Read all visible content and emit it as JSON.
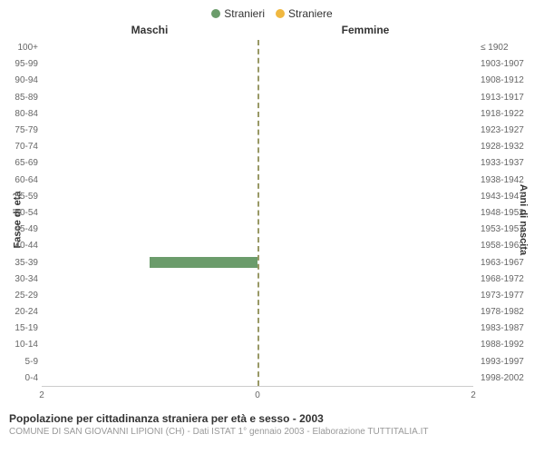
{
  "legend": {
    "male": {
      "label": "Stranieri",
      "color": "#6b9c6b"
    },
    "female": {
      "label": "Straniere",
      "color": "#f0b840"
    }
  },
  "columns": {
    "left": "Maschi",
    "right": "Femmine"
  },
  "axes": {
    "left_label": "Fasce di età",
    "right_label": "Anni di nascita",
    "xmax": 2,
    "x_ticks": [
      2,
      0,
      2
    ]
  },
  "age_groups": [
    {
      "age": "100+",
      "birth": "≤ 1902",
      "m": 0,
      "f": 0
    },
    {
      "age": "95-99",
      "birth": "1903-1907",
      "m": 0,
      "f": 0
    },
    {
      "age": "90-94",
      "birth": "1908-1912",
      "m": 0,
      "f": 0
    },
    {
      "age": "85-89",
      "birth": "1913-1917",
      "m": 0,
      "f": 0
    },
    {
      "age": "80-84",
      "birth": "1918-1922",
      "m": 0,
      "f": 0
    },
    {
      "age": "75-79",
      "birth": "1923-1927",
      "m": 0,
      "f": 0
    },
    {
      "age": "70-74",
      "birth": "1928-1932",
      "m": 0,
      "f": 0
    },
    {
      "age": "65-69",
      "birth": "1933-1937",
      "m": 0,
      "f": 0
    },
    {
      "age": "60-64",
      "birth": "1938-1942",
      "m": 0,
      "f": 0
    },
    {
      "age": "55-59",
      "birth": "1943-1947",
      "m": 0,
      "f": 0
    },
    {
      "age": "50-54",
      "birth": "1948-1952",
      "m": 0,
      "f": 0
    },
    {
      "age": "45-49",
      "birth": "1953-1957",
      "m": 0,
      "f": 0
    },
    {
      "age": "40-44",
      "birth": "1958-1962",
      "m": 0,
      "f": 0
    },
    {
      "age": "35-39",
      "birth": "1963-1967",
      "m": 1,
      "f": 0
    },
    {
      "age": "30-34",
      "birth": "1968-1972",
      "m": 0,
      "f": 0
    },
    {
      "age": "25-29",
      "birth": "1973-1977",
      "m": 0,
      "f": 0
    },
    {
      "age": "20-24",
      "birth": "1978-1982",
      "m": 0,
      "f": 0
    },
    {
      "age": "15-19",
      "birth": "1983-1987",
      "m": 0,
      "f": 0
    },
    {
      "age": "10-14",
      "birth": "1988-1992",
      "m": 0,
      "f": 0
    },
    {
      "age": "5-9",
      "birth": "1993-1997",
      "m": 0,
      "f": 0
    },
    {
      "age": "0-4",
      "birth": "1998-2002",
      "m": 0,
      "f": 0
    }
  ],
  "colors": {
    "male_bar": "#6b9c6b",
    "female_bar": "#f0b840",
    "center_line": "#999966",
    "text": "#333333",
    "tick_text": "#666666",
    "subtitle": "#999999",
    "background": "#ffffff"
  },
  "footer": {
    "title": "Popolazione per cittadinanza straniera per età e sesso - 2003",
    "subtitle": "COMUNE DI SAN GIOVANNI LIPIONI (CH) - Dati ISTAT 1° gennaio 2003 - Elaborazione TUTTITALIA.IT"
  }
}
